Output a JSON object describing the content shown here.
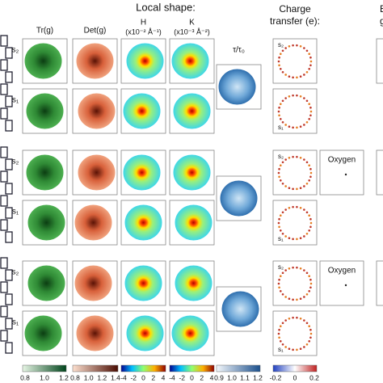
{
  "header": {
    "title": "Local shape:",
    "columns": [
      {
        "label": "Tr(g)"
      },
      {
        "label": "Det(g)"
      },
      {
        "label": "H",
        "unit": "(x10⁻² Å⁻¹)"
      },
      {
        "label": "K",
        "unit": "(x10⁻³ Å⁻²)"
      },
      {
        "label": "τ/τ₀"
      }
    ],
    "charge": [
      "Charge",
      "transfer (e):"
    ],
    "right": [
      "E",
      "g"
    ]
  },
  "groups": [
    {
      "rows": [
        {
          "label": "s₂"
        },
        {
          "label": "s₁"
        }
      ]
    },
    {
      "rows": [
        {
          "label": "s₂"
        },
        {
          "label": "s₁"
        }
      ],
      "oxygen": "Oxygen"
    },
    {
      "rows": [
        {
          "label": "s₂"
        },
        {
          "label": "s₁"
        }
      ],
      "oxygen": "Oxygen"
    }
  ],
  "colorbars": [
    {
      "ticks": [
        "0.8",
        "1.0",
        "1.2"
      ]
    },
    {
      "ticks": [
        "0.8",
        "1.0",
        "1.2",
        "1.4"
      ]
    },
    {
      "ticks": [
        "-4",
        "-2",
        "0",
        "2",
        "4"
      ]
    },
    {
      "ticks": [
        "-4",
        "-2",
        "0",
        "2",
        "4"
      ]
    },
    {
      "ticks": [
        "0.9",
        "1.0",
        "1.1",
        "1.2"
      ]
    },
    {
      "ticks": [
        "-0.2",
        "0",
        "0.2"
      ]
    }
  ]
}
